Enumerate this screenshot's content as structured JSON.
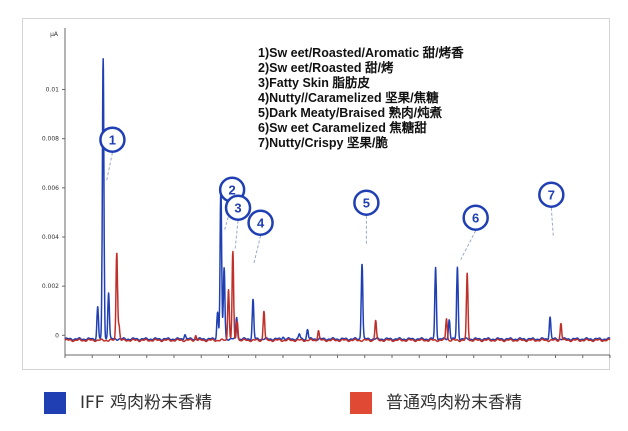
{
  "chart_data": {
    "type": "line",
    "y_unit_label": "μA",
    "y_ticks": [
      "0.01",
      "0.008",
      "0.006",
      "0.004",
      "0.002",
      "0"
    ],
    "ylim": [
      -0.0008,
      0.0125
    ],
    "xlim": [
      0,
      100
    ],
    "series": [
      {
        "name": "IFF 鸡肉粉末香精",
        "color": "#1f3fb3",
        "peaks": [
          [
            6,
            0.0013
          ],
          [
            7,
            0.0114
          ],
          [
            8,
            0.0019
          ],
          [
            22,
            0.0002
          ],
          [
            28,
            0.0011
          ],
          [
            28.6,
            0.0062
          ],
          [
            29.2,
            0.0029
          ],
          [
            31.5,
            0.0009
          ],
          [
            34.5,
            0.0016
          ],
          [
            40,
            0.0001
          ],
          [
            43,
            0.0002
          ],
          [
            44.5,
            0.0004
          ],
          [
            54.5,
            0.0031
          ],
          [
            68,
            0.0029
          ],
          [
            70.5,
            0.0008
          ],
          [
            72,
            0.0029
          ],
          [
            89,
            0.0009
          ]
        ]
      },
      {
        "name": "普通鸡肉粉末香精",
        "color": "#c0302a",
        "peaks": [
          [
            9.5,
            0.0036
          ],
          [
            9.9,
            0.0006
          ],
          [
            24,
            0.0002
          ],
          [
            30,
            0.0021
          ],
          [
            30.8,
            0.0036
          ],
          [
            31.6,
            0.0008
          ],
          [
            36.5,
            0.0012
          ],
          [
            46.5,
            0.0004
          ],
          [
            57,
            0.0008
          ],
          [
            70,
            0.0009
          ],
          [
            73.8,
            0.0027
          ],
          [
            91,
            0.0007
          ]
        ]
      }
    ],
    "annotations": [
      {
        "label": "1",
        "peak_x": 7.6
      },
      {
        "label": "2",
        "peak_x": 29.2
      },
      {
        "label": "3",
        "peak_x": 31.2
      },
      {
        "label": "4",
        "peak_x": 34.6
      },
      {
        "label": "5",
        "peak_x": 55.3
      },
      {
        "label": "6",
        "peak_x": 72.6
      },
      {
        "label": "7",
        "peak_x": 89.6
      }
    ],
    "annotation_list": [
      "1)Sw eet/Roasted/Aromatic 甜/烤香",
      "2)Sw eet/Roasted 甜/烤",
      "3)Fatty Skin 脂肪皮",
      "4)Nutty//Caramelized 坚果/焦糖",
      "5)Dark Meaty/Braised 熟肉/炖煮",
      "6)Sw eet Caramelized 焦糖甜",
      "7)Nutty/Crispy 坚果/脆"
    ]
  },
  "legend": [
    {
      "label": "IFF 鸡肉粉末香精",
      "color": "#1f3fb3"
    },
    {
      "label": "普通鸡肉粉末香精",
      "color": "#e04a35"
    }
  ]
}
